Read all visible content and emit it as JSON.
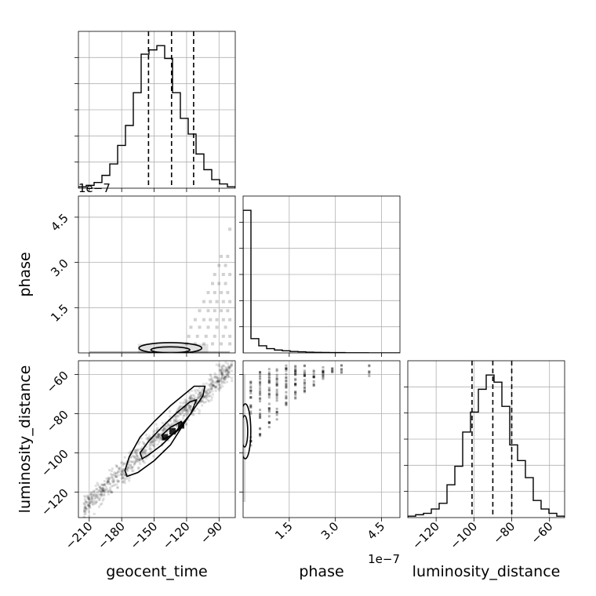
{
  "chart_data": {
    "type": "corner",
    "parameters": [
      "geocent_time",
      "phase",
      "luminosity_distance"
    ],
    "offset_text": {
      "phase_yaxis": "1e−7",
      "phase_xaxis": "1e−7"
    },
    "grid": true,
    "quantile_style": "dashed",
    "panels": [
      {
        "id": "hist-geocent_time",
        "type": "histogram",
        "x": "geocent_time",
        "xlim": [
          -220,
          -75
        ],
        "bins": 20,
        "counts": [
          1,
          2,
          4,
          9,
          17,
          30,
          44,
          67,
          94,
          97,
          100,
          91,
          67,
          49,
          38,
          24,
          13,
          6,
          3,
          1
        ],
        "quantiles": [
          -155.2,
          -133.9,
          -113.5
        ]
      },
      {
        "id": "scatter-geocent_time-phase",
        "type": "2d-density",
        "x": "geocent_time",
        "y": "phase",
        "xlim": [
          -220,
          -75
        ],
        "ylim": [
          0,
          5.2
        ],
        "y_multiplier": "1e-7",
        "points": [
          [
            -80,
            4.1
          ],
          [
            -88,
            3.2
          ],
          [
            -82,
            3.2
          ],
          [
            -90,
            2.9
          ],
          [
            -84,
            2.9
          ],
          [
            -94,
            2.6
          ],
          [
            -86,
            2.6
          ],
          [
            -80,
            2.6
          ],
          [
            -96,
            2.3
          ],
          [
            -90,
            2.3
          ],
          [
            -84,
            2.3
          ],
          [
            -100,
            2.0
          ],
          [
            -94,
            2.0
          ],
          [
            -88,
            2.0
          ],
          [
            -82,
            2.0
          ],
          [
            -104,
            1.7
          ],
          [
            -98,
            1.7
          ],
          [
            -92,
            1.7
          ],
          [
            -86,
            1.7
          ],
          [
            -80,
            1.7
          ],
          [
            -108,
            1.4
          ],
          [
            -100,
            1.4
          ],
          [
            -94,
            1.4
          ],
          [
            -88,
            1.4
          ],
          [
            -82,
            1.4
          ],
          [
            -112,
            1.1
          ],
          [
            -104,
            1.1
          ],
          [
            -98,
            1.1
          ],
          [
            -92,
            1.1
          ],
          [
            -86,
            1.1
          ],
          [
            -80,
            1.1
          ],
          [
            -116,
            0.85
          ],
          [
            -108,
            0.85
          ],
          [
            -100,
            0.85
          ],
          [
            -92,
            0.85
          ],
          [
            -84,
            0.85
          ],
          [
            -118,
            0.55
          ],
          [
            -110,
            0.55
          ],
          [
            -102,
            0.55
          ],
          [
            -94,
            0.55
          ],
          [
            -86,
            0.55
          ],
          [
            -80,
            0.55
          ],
          [
            -120,
            0.3
          ],
          [
            -112,
            0.3
          ],
          [
            -104,
            0.3
          ],
          [
            -96,
            0.3
          ],
          [
            -88,
            0.3
          ],
          [
            -80,
            0.3
          ]
        ],
        "contours": [
          {
            "center": [
              -135,
              0.16
            ],
            "rx": 29,
            "ry": 0.18
          },
          {
            "center": [
              -135,
              0.1
            ],
            "rx": 18,
            "ry": 0.1
          }
        ]
      },
      {
        "id": "hist-phase",
        "type": "histogram",
        "x": "phase",
        "xlim": [
          0,
          5.1
        ],
        "x_multiplier": "1e-7",
        "bins": 20,
        "counts": [
          100,
          10,
          5,
          3,
          2,
          1.5,
          1,
          0.8,
          0.5,
          0.4,
          0.3,
          0.2,
          0.2,
          0.1,
          0.1,
          0.1,
          0,
          0,
          0,
          0
        ]
      },
      {
        "id": "scatter-geocent_time-luminosity_distance",
        "type": "2d-density",
        "x": "geocent_time",
        "y": "luminosity_distance",
        "xlim": [
          -220,
          -75
        ],
        "ylim": [
          -133,
          -53
        ],
        "trend": {
          "from": [
            -215,
            -128
          ],
          "to": [
            -78,
            -56
          ],
          "spread": 4.5
        },
        "contours": [
          {
            "polygon": [
              [
                -177,
                -109
              ],
              [
                -173,
                -102
              ],
              [
                -163,
                -92
              ],
              [
                -150,
                -84
              ],
              [
                -135,
                -76
              ],
              [
                -113,
                -66
              ],
              [
                -103,
                -66
              ],
              [
                -105,
                -71
              ],
              [
                -120,
                -83
              ],
              [
                -135,
                -96
              ],
              [
                -150,
                -104
              ],
              [
                -165,
                -110
              ],
              [
                -175,
                -112
              ]
            ]
          },
          {
            "polygon": [
              [
                -163,
                -100
              ],
              [
                -155,
                -94
              ],
              [
                -143,
                -87
              ],
              [
                -130,
                -80
              ],
              [
                -117,
                -74
              ],
              [
                -111,
                -73
              ],
              [
                -116,
                -80
              ],
              [
                -130,
                -89
              ],
              [
                -143,
                -96
              ],
              [
                -155,
                -101
              ],
              [
                -161,
                -103
              ]
            ]
          },
          {
            "polygon": [
              [
                -143,
                -91
              ],
              [
                -135,
                -87
              ],
              [
                -125,
                -84
              ],
              [
                -123,
                -86
              ],
              [
                -131,
                -90
              ],
              [
                -141,
                -93
              ]
            ]
          }
        ],
        "peaks": [
          [
            -133,
            -89
          ],
          [
            -125,
            -86
          ],
          [
            -140,
            -92
          ]
        ]
      },
      {
        "id": "scatter-phase-luminosity_distance",
        "type": "2d-density",
        "x": "phase",
        "y": "luminosity_distance",
        "xlim": [
          0,
          5.1
        ],
        "ylim": [
          -133,
          -53
        ],
        "x_multiplier": "1e-7",
        "columns": [
          {
            "x": 0.25,
            "y": [
              -95,
              -78,
              -70,
              -66
            ]
          },
          {
            "x": 0.55,
            "y": [
              -90,
              -80,
              -72,
              -66,
              -60
            ]
          },
          {
            "x": 0.85,
            "y": [
              -84,
              -76,
              -70,
              -64,
              -60
            ]
          },
          {
            "x": 1.1,
            "y": [
              -80,
              -72,
              -66,
              -60
            ]
          },
          {
            "x": 1.4,
            "y": [
              -74,
              -68,
              -62,
              -58
            ]
          },
          {
            "x": 1.7,
            "y": [
              -70,
              -64,
              -60,
              -58
            ]
          },
          {
            "x": 2.0,
            "y": [
              -66,
              -62,
              -58
            ]
          },
          {
            "x": 2.3,
            "y": [
              -64,
              -60
            ]
          },
          {
            "x": 2.6,
            "y": [
              -60,
              -58
            ]
          },
          {
            "x": 2.9,
            "y": [
              -58
            ]
          },
          {
            "x": 3.2,
            "y": [
              -58
            ]
          },
          {
            "x": 4.1,
            "y": [
              -58
            ]
          }
        ],
        "contours": [
          {
            "center": [
              0.07,
              -89
            ],
            "rx": 0.18,
            "ry": 14
          },
          {
            "center": [
              0.05,
              -89
            ],
            "rx": 0.1,
            "ry": 8
          }
        ]
      },
      {
        "id": "hist-luminosity_distance",
        "type": "histogram",
        "x": "luminosity_distance",
        "xlim": [
          -135,
          -52
        ],
        "bins": 20,
        "counts": [
          1,
          2,
          3,
          6,
          10,
          23,
          36,
          60,
          74,
          90,
          100,
          95,
          78,
          51,
          40,
          28,
          12,
          6,
          3,
          1
        ],
        "quantiles": [
          -101,
          -90,
          -80
        ]
      }
    ],
    "xticks": {
      "geocent_time": {
        "values": [
          -210,
          -180,
          -150,
          -120,
          -90
        ],
        "labels": [
          "−210",
          "−180",
          "−150",
          "−120",
          "−90"
        ]
      },
      "phase": {
        "values": [
          1.5,
          3.0,
          4.5
        ],
        "labels": [
          "1.5",
          "3.0",
          "4.5"
        ]
      },
      "luminosity_distance": {
        "values": [
          -120,
          -100,
          -80,
          -60
        ],
        "labels": [
          "−120",
          "−100",
          "−80",
          "−60"
        ]
      }
    },
    "yticks": {
      "phase": {
        "values": [
          1.5,
          3.0,
          4.5
        ],
        "labels": [
          "1.5",
          "3.0",
          "4.5"
        ]
      },
      "luminosity_distance": {
        "values": [
          -120,
          -100,
          -80,
          -60
        ],
        "labels": [
          "−120",
          "−100",
          "−80",
          "−60"
        ]
      }
    },
    "xlabels": [
      "geocent_time",
      "phase",
      "luminosity_distance"
    ],
    "ylabels": [
      "phase",
      "luminosity_distance"
    ]
  }
}
